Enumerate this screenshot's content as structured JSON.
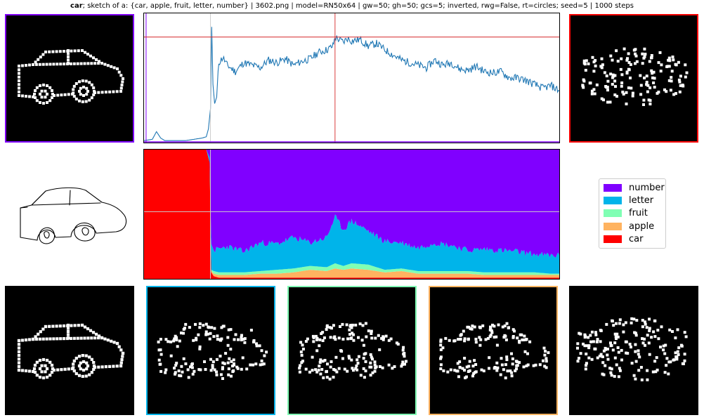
{
  "header": {
    "title_bold": "car",
    "title_rest": "; sketch of a: {car, apple, fruit, letter, number} | 3602.png | model=RN50x64 | gw=50; gh=50; gcs=5; inverted, rwg=False, rt=circles; seed=5 | 1000 steps"
  },
  "colors": {
    "number": "#8000ff",
    "letter": "#00b4ea",
    "fruit": "#80ffb4",
    "apple": "#ffb360",
    "car": "#ff0000",
    "line": "#1f77b4",
    "marker": "#d62728"
  },
  "chart_data": [
    {
      "type": "line",
      "title": "",
      "xlabel": "",
      "ylabel": "",
      "xlim": [
        0,
        1000
      ],
      "ylim": [
        0,
        1
      ],
      "grid": false,
      "markers": {
        "vertical_steps": [
          5,
          160,
          460
        ],
        "horizontal_value": 0.82
      },
      "series": [
        {
          "x": [
            0,
            20,
            30,
            40,
            50,
            60,
            80,
            100,
            120,
            140,
            150,
            155,
            160,
            163,
            166,
            170,
            175,
            180,
            190,
            200,
            220,
            240,
            260,
            280,
            300,
            320,
            340,
            360,
            380,
            400,
            420,
            440,
            455,
            460,
            470,
            480,
            490,
            500,
            520,
            540,
            560,
            580,
            600,
            620,
            640,
            660,
            680,
            700,
            720,
            740,
            760,
            780,
            800,
            820,
            840,
            860,
            880,
            900,
            920,
            940,
            960,
            980,
            1000
          ],
          "values": [
            0.01,
            0.02,
            0.08,
            0.03,
            0.01,
            0.01,
            0.01,
            0.01,
            0.02,
            0.03,
            0.04,
            0.1,
            0.26,
            0.9,
            0.45,
            0.3,
            0.35,
            0.62,
            0.66,
            0.6,
            0.55,
            0.62,
            0.6,
            0.58,
            0.64,
            0.62,
            0.65,
            0.6,
            0.63,
            0.65,
            0.7,
            0.72,
            0.75,
            0.82,
            0.8,
            0.78,
            0.81,
            0.79,
            0.8,
            0.75,
            0.77,
            0.72,
            0.68,
            0.64,
            0.62,
            0.6,
            0.58,
            0.64,
            0.6,
            0.62,
            0.57,
            0.56,
            0.59,
            0.55,
            0.54,
            0.55,
            0.5,
            0.5,
            0.48,
            0.45,
            0.42,
            0.44,
            0.4
          ]
        }
      ]
    },
    {
      "type": "area",
      "title": "",
      "xlabel": "",
      "ylabel": "",
      "xlim": [
        0,
        1000
      ],
      "ylim": [
        0,
        1
      ],
      "stacked": true,
      "grid": false,
      "legend": "right",
      "markers": {
        "vertical_steps": [
          160
        ],
        "horizontal_value": 0.52
      },
      "x": [
        0,
        150,
        158,
        162,
        168,
        180,
        200,
        240,
        280,
        320,
        360,
        400,
        440,
        460,
        480,
        500,
        540,
        580,
        620,
        660,
        700,
        740,
        780,
        820,
        860,
        900,
        940,
        980,
        1000
      ],
      "series": [
        {
          "name": "car",
          "values": [
            1.0,
            1.0,
            0.9,
            0.05,
            0.02,
            0.01,
            0.01,
            0.01,
            0.01,
            0.01,
            0.01,
            0.01,
            0.01,
            0.01,
            0.01,
            0.01,
            0.01,
            0.01,
            0.01,
            0.01,
            0.01,
            0.01,
            0.01,
            0.01,
            0.01,
            0.01,
            0.01,
            0.01,
            0.01
          ]
        },
        {
          "name": "apple",
          "values": [
            0.0,
            0.0,
            0.0,
            0.01,
            0.02,
            0.02,
            0.02,
            0.02,
            0.03,
            0.03,
            0.04,
            0.06,
            0.05,
            0.07,
            0.06,
            0.07,
            0.06,
            0.04,
            0.05,
            0.03,
            0.03,
            0.03,
            0.03,
            0.02,
            0.02,
            0.02,
            0.02,
            0.02,
            0.02
          ]
        },
        {
          "name": "fruit",
          "values": [
            0.0,
            0.0,
            0.0,
            0.01,
            0.02,
            0.02,
            0.02,
            0.02,
            0.02,
            0.03,
            0.03,
            0.03,
            0.03,
            0.04,
            0.03,
            0.04,
            0.04,
            0.02,
            0.02,
            0.02,
            0.02,
            0.02,
            0.02,
            0.02,
            0.02,
            0.02,
            0.02,
            0.01,
            0.01
          ]
        },
        {
          "name": "letter",
          "values": [
            0.0,
            0.0,
            0.04,
            0.2,
            0.16,
            0.18,
            0.2,
            0.16,
            0.22,
            0.2,
            0.24,
            0.18,
            0.23,
            0.36,
            0.28,
            0.33,
            0.26,
            0.22,
            0.2,
            0.18,
            0.22,
            0.2,
            0.16,
            0.18,
            0.17,
            0.16,
            0.14,
            0.14,
            0.14
          ]
        },
        {
          "name": "number",
          "values": [
            0.0,
            0.0,
            0.06,
            0.73,
            0.78,
            0.77,
            0.75,
            0.79,
            0.72,
            0.73,
            0.68,
            0.72,
            0.68,
            0.52,
            0.62,
            0.55,
            0.63,
            0.71,
            0.72,
            0.76,
            0.72,
            0.74,
            0.78,
            0.77,
            0.78,
            0.79,
            0.81,
            0.82,
            0.82
          ]
        }
      ]
    }
  ],
  "legend": {
    "entries": [
      {
        "label": "number",
        "color": "#8000ff"
      },
      {
        "label": "letter",
        "color": "#00b4ea"
      },
      {
        "label": "fruit",
        "color": "#80ffb4"
      },
      {
        "label": "apple",
        "color": "#ffb360"
      },
      {
        "label": "car",
        "color": "#ff0000"
      }
    ]
  },
  "tiles": {
    "top_left": {
      "border": "#8000ff"
    },
    "top_right": {
      "border": "#ff0000"
    },
    "bottom_1": {
      "border": "#000000"
    },
    "bottom_2": {
      "border": "#00b4ea"
    },
    "bottom_3": {
      "border": "#80ffb4"
    },
    "bottom_4": {
      "border": "#ffb360"
    },
    "bottom_5": {
      "border": "#000000"
    }
  }
}
